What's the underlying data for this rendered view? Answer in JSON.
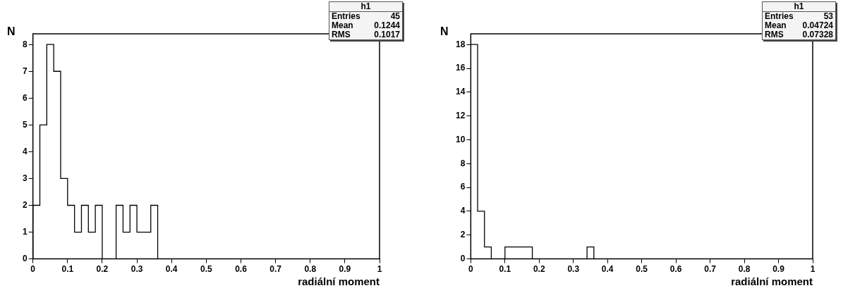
{
  "chart_data": [
    {
      "type": "histogram",
      "xlabel": "radiální moment",
      "ylabel": "N",
      "bins": [
        0,
        0.02,
        0.04,
        0.06,
        0.08,
        0.1,
        0.12,
        0.14,
        0.16,
        0.18,
        0.2,
        0.22,
        0.24,
        0.26,
        0.28,
        0.3,
        0.32,
        0.34,
        0.36,
        0.38,
        0.4,
        0.42,
        0.44,
        0.46,
        0.48,
        0.5,
        0.52,
        0.54,
        0.56,
        0.58,
        0.6,
        0.62,
        0.64,
        0.66,
        0.68,
        0.7,
        0.72,
        0.74,
        0.76,
        0.78,
        0.8,
        0.82,
        0.84,
        0.86,
        0.88,
        0.9,
        0.92,
        0.94,
        0.96,
        0.98,
        1
      ],
      "values": [
        2,
        5,
        8,
        7,
        3,
        2,
        1,
        2,
        1,
        2,
        0,
        0,
        2,
        1,
        2,
        1,
        1,
        2,
        0,
        0,
        0,
        0,
        0,
        0,
        0,
        0,
        0,
        0,
        0,
        0,
        0,
        0,
        0,
        0,
        0,
        0,
        0,
        0,
        0,
        0,
        0,
        0,
        0,
        0,
        0,
        0,
        0,
        0,
        0,
        0
      ],
      "color": "#000000",
      "xlim": [
        0,
        1
      ],
      "xticks": [
        0,
        0.1,
        0.2,
        0.3,
        0.4,
        0.5,
        0.6,
        0.7,
        0.8,
        0.9,
        1
      ],
      "ylim": [
        0,
        8.4
      ],
      "yticks": [
        0,
        1,
        2,
        3,
        4,
        5,
        6,
        7,
        8
      ],
      "grid": false,
      "legend": false,
      "annotations": [
        "h1",
        "Entries 45",
        "Mean 0.1244",
        "RMS 0.1017"
      ]
    },
    {
      "type": "histogram",
      "xlabel": "radiální moment",
      "ylabel": "N",
      "bins": [
        0,
        0.02,
        0.04,
        0.06,
        0.08,
        0.1,
        0.12,
        0.14,
        0.16,
        0.18,
        0.2,
        0.22,
        0.24,
        0.26,
        0.28,
        0.3,
        0.32,
        0.34,
        0.36,
        0.38,
        0.4,
        0.42,
        0.44,
        0.46,
        0.48,
        0.5,
        0.52,
        0.54,
        0.56,
        0.58,
        0.6,
        0.62,
        0.64,
        0.66,
        0.68,
        0.7,
        0.72,
        0.74,
        0.76,
        0.78,
        0.8,
        0.82,
        0.84,
        0.86,
        0.88,
        0.9,
        0.92,
        0.94,
        0.96,
        0.98,
        1
      ],
      "values": [
        18,
        4,
        1,
        0,
        0,
        1,
        1,
        1,
        1,
        0,
        0,
        0,
        0,
        0,
        0,
        0,
        0,
        1,
        0,
        0,
        0,
        0,
        0,
        0,
        0,
        0,
        0,
        0,
        0,
        0,
        0,
        0,
        0,
        0,
        0,
        0,
        0,
        0,
        0,
        0,
        0,
        0,
        0,
        0,
        0,
        0,
        0,
        0,
        0,
        0
      ],
      "color": "#000000",
      "xlim": [
        0,
        1
      ],
      "xticks": [
        0,
        0.1,
        0.2,
        0.3,
        0.4,
        0.5,
        0.6,
        0.7,
        0.8,
        0.9,
        1
      ],
      "ylim": [
        0,
        18.9
      ],
      "yticks": [
        0,
        2,
        4,
        6,
        8,
        10,
        12,
        14,
        16,
        18
      ],
      "grid": false,
      "legend": false,
      "annotations": [
        "h1",
        "Entries 53",
        "Mean 0.04724",
        "RMS 0.07328"
      ]
    }
  ]
}
